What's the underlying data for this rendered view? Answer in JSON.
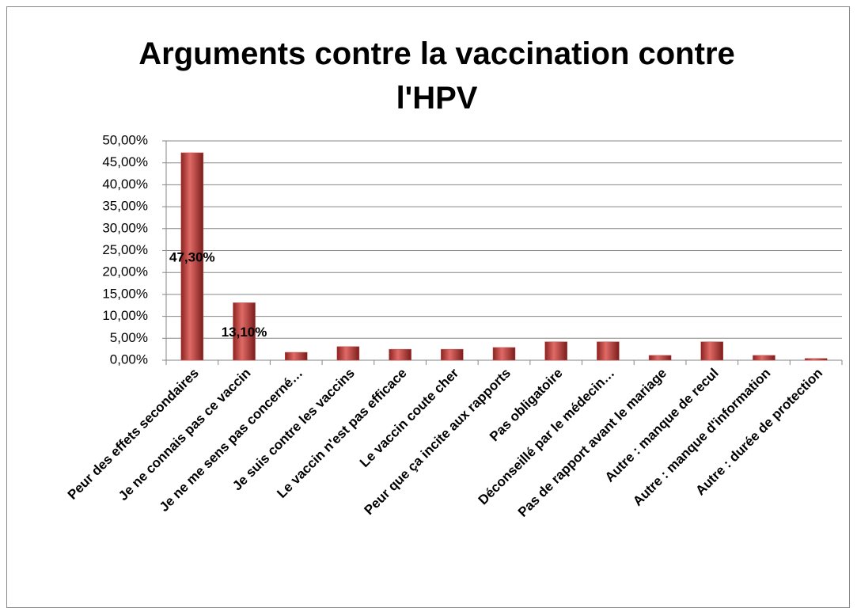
{
  "chart_data": {
    "type": "bar",
    "title": "Arguments contre la vaccination contre l'HPV",
    "categories": [
      "Peur des effets secondaires",
      "Je ne connais pas ce vaccin",
      "Je ne me sens pas concerné…",
      "Je suis contre les vaccins",
      "Le vaccin n'est pas efficace",
      "Le vaccin coute cher",
      "Peur que ça incite aux rapports",
      "Pas obligatoire",
      "Déconseillé par le médecin…",
      "Pas de rapport avant le mariage",
      "Autre : manque de recul",
      "Autre : manque d'information",
      "Autre : durée de protection"
    ],
    "values": [
      47.3,
      13.1,
      1.8,
      3.1,
      2.5,
      2.5,
      2.9,
      4.2,
      4.2,
      1.1,
      4.2,
      1.1,
      0.4
    ],
    "value_labels": [
      "47,30%",
      "13,10%",
      null,
      null,
      null,
      null,
      null,
      null,
      null,
      null,
      null,
      null,
      null
    ],
    "color": "#c0504d",
    "ylim": [
      0,
      50
    ],
    "yticks": [
      {
        "value": 0,
        "label": "0,00%"
      },
      {
        "value": 5,
        "label": "5,00%"
      },
      {
        "value": 10,
        "label": "10,00%"
      },
      {
        "value": 15,
        "label": "15,00%"
      },
      {
        "value": 20,
        "label": "20,00%"
      },
      {
        "value": 25,
        "label": "25,00%"
      },
      {
        "value": 30,
        "label": "30,00%"
      },
      {
        "value": 35,
        "label": "35,00%"
      },
      {
        "value": 40,
        "label": "40,00%"
      },
      {
        "value": 45,
        "label": "45,00%"
      },
      {
        "value": 50,
        "label": "50,00%"
      }
    ],
    "grid": true
  }
}
